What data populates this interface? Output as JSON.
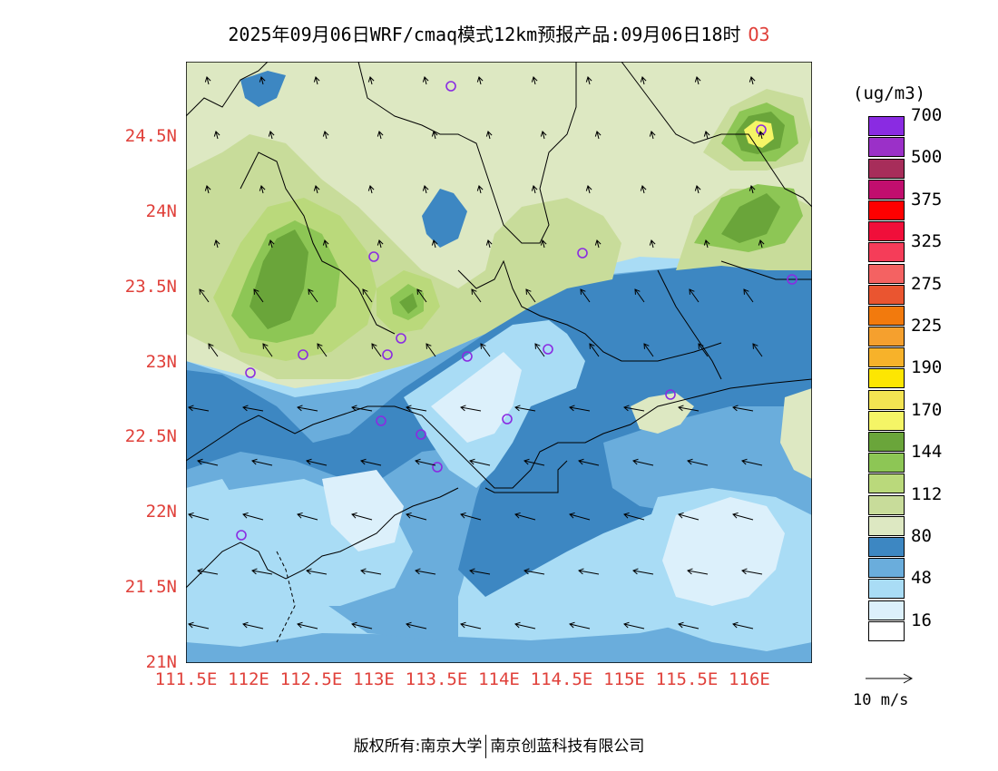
{
  "title": {
    "text": "2025年09月06日WRF/cmaq模式12km预报产品:09月06日18时",
    "pollutant": "O3"
  },
  "legend": {
    "unit": "(ug/m3)",
    "colors": [
      "#ffffff",
      "#dcf0fb",
      "#a9dcf5",
      "#6aaddc",
      "#3d87c2",
      "#dde8c2",
      "#c8dc9a",
      "#bad97b",
      "#8dc655",
      "#6aa53a",
      "#f5f566",
      "#f3e452",
      "#fde602",
      "#f7b22a",
      "#f5a02e",
      "#f27a0d",
      "#ea5530",
      "#f46262",
      "#f53d59",
      "#f00f3a",
      "#fe0000",
      "#c10e6e",
      "#a72d5a",
      "#9b30c8",
      "#8a2be2"
    ],
    "labels": [
      {
        "text": "16",
        "index": 1
      },
      {
        "text": "48",
        "index": 3
      },
      {
        "text": "80",
        "index": 5
      },
      {
        "text": "112",
        "index": 7
      },
      {
        "text": "144",
        "index": 9
      },
      {
        "text": "170",
        "index": 11
      },
      {
        "text": "190",
        "index": 13
      },
      {
        "text": "225",
        "index": 15
      },
      {
        "text": "275",
        "index": 17
      },
      {
        "text": "325",
        "index": 19
      },
      {
        "text": "375",
        "index": 21
      },
      {
        "text": "500",
        "index": 23
      },
      {
        "text": "700",
        "index": 25
      }
    ]
  },
  "axes": {
    "lat_labels": [
      "24.5N",
      "24N",
      "23.5N",
      "23N",
      "22.5N",
      "22N",
      "21.5N",
      "21N"
    ],
    "lat_values": [
      24.5,
      24,
      23.5,
      23,
      22.5,
      22,
      21.5,
      21
    ],
    "lon_labels": [
      "111.5E",
      "112E",
      "112.5E",
      "113E",
      "113.5E",
      "114E",
      "114.5E",
      "115E",
      "115.5E",
      "116E"
    ],
    "lon_values": [
      111.5,
      112,
      112.5,
      113,
      113.5,
      114,
      114.5,
      115,
      115.5,
      116
    ]
  },
  "vector_reference": {
    "label": "10 m/s"
  },
  "footer": {
    "left": "版权所有:南京大学",
    "right": "南京创蓝科技有限公司"
  }
}
